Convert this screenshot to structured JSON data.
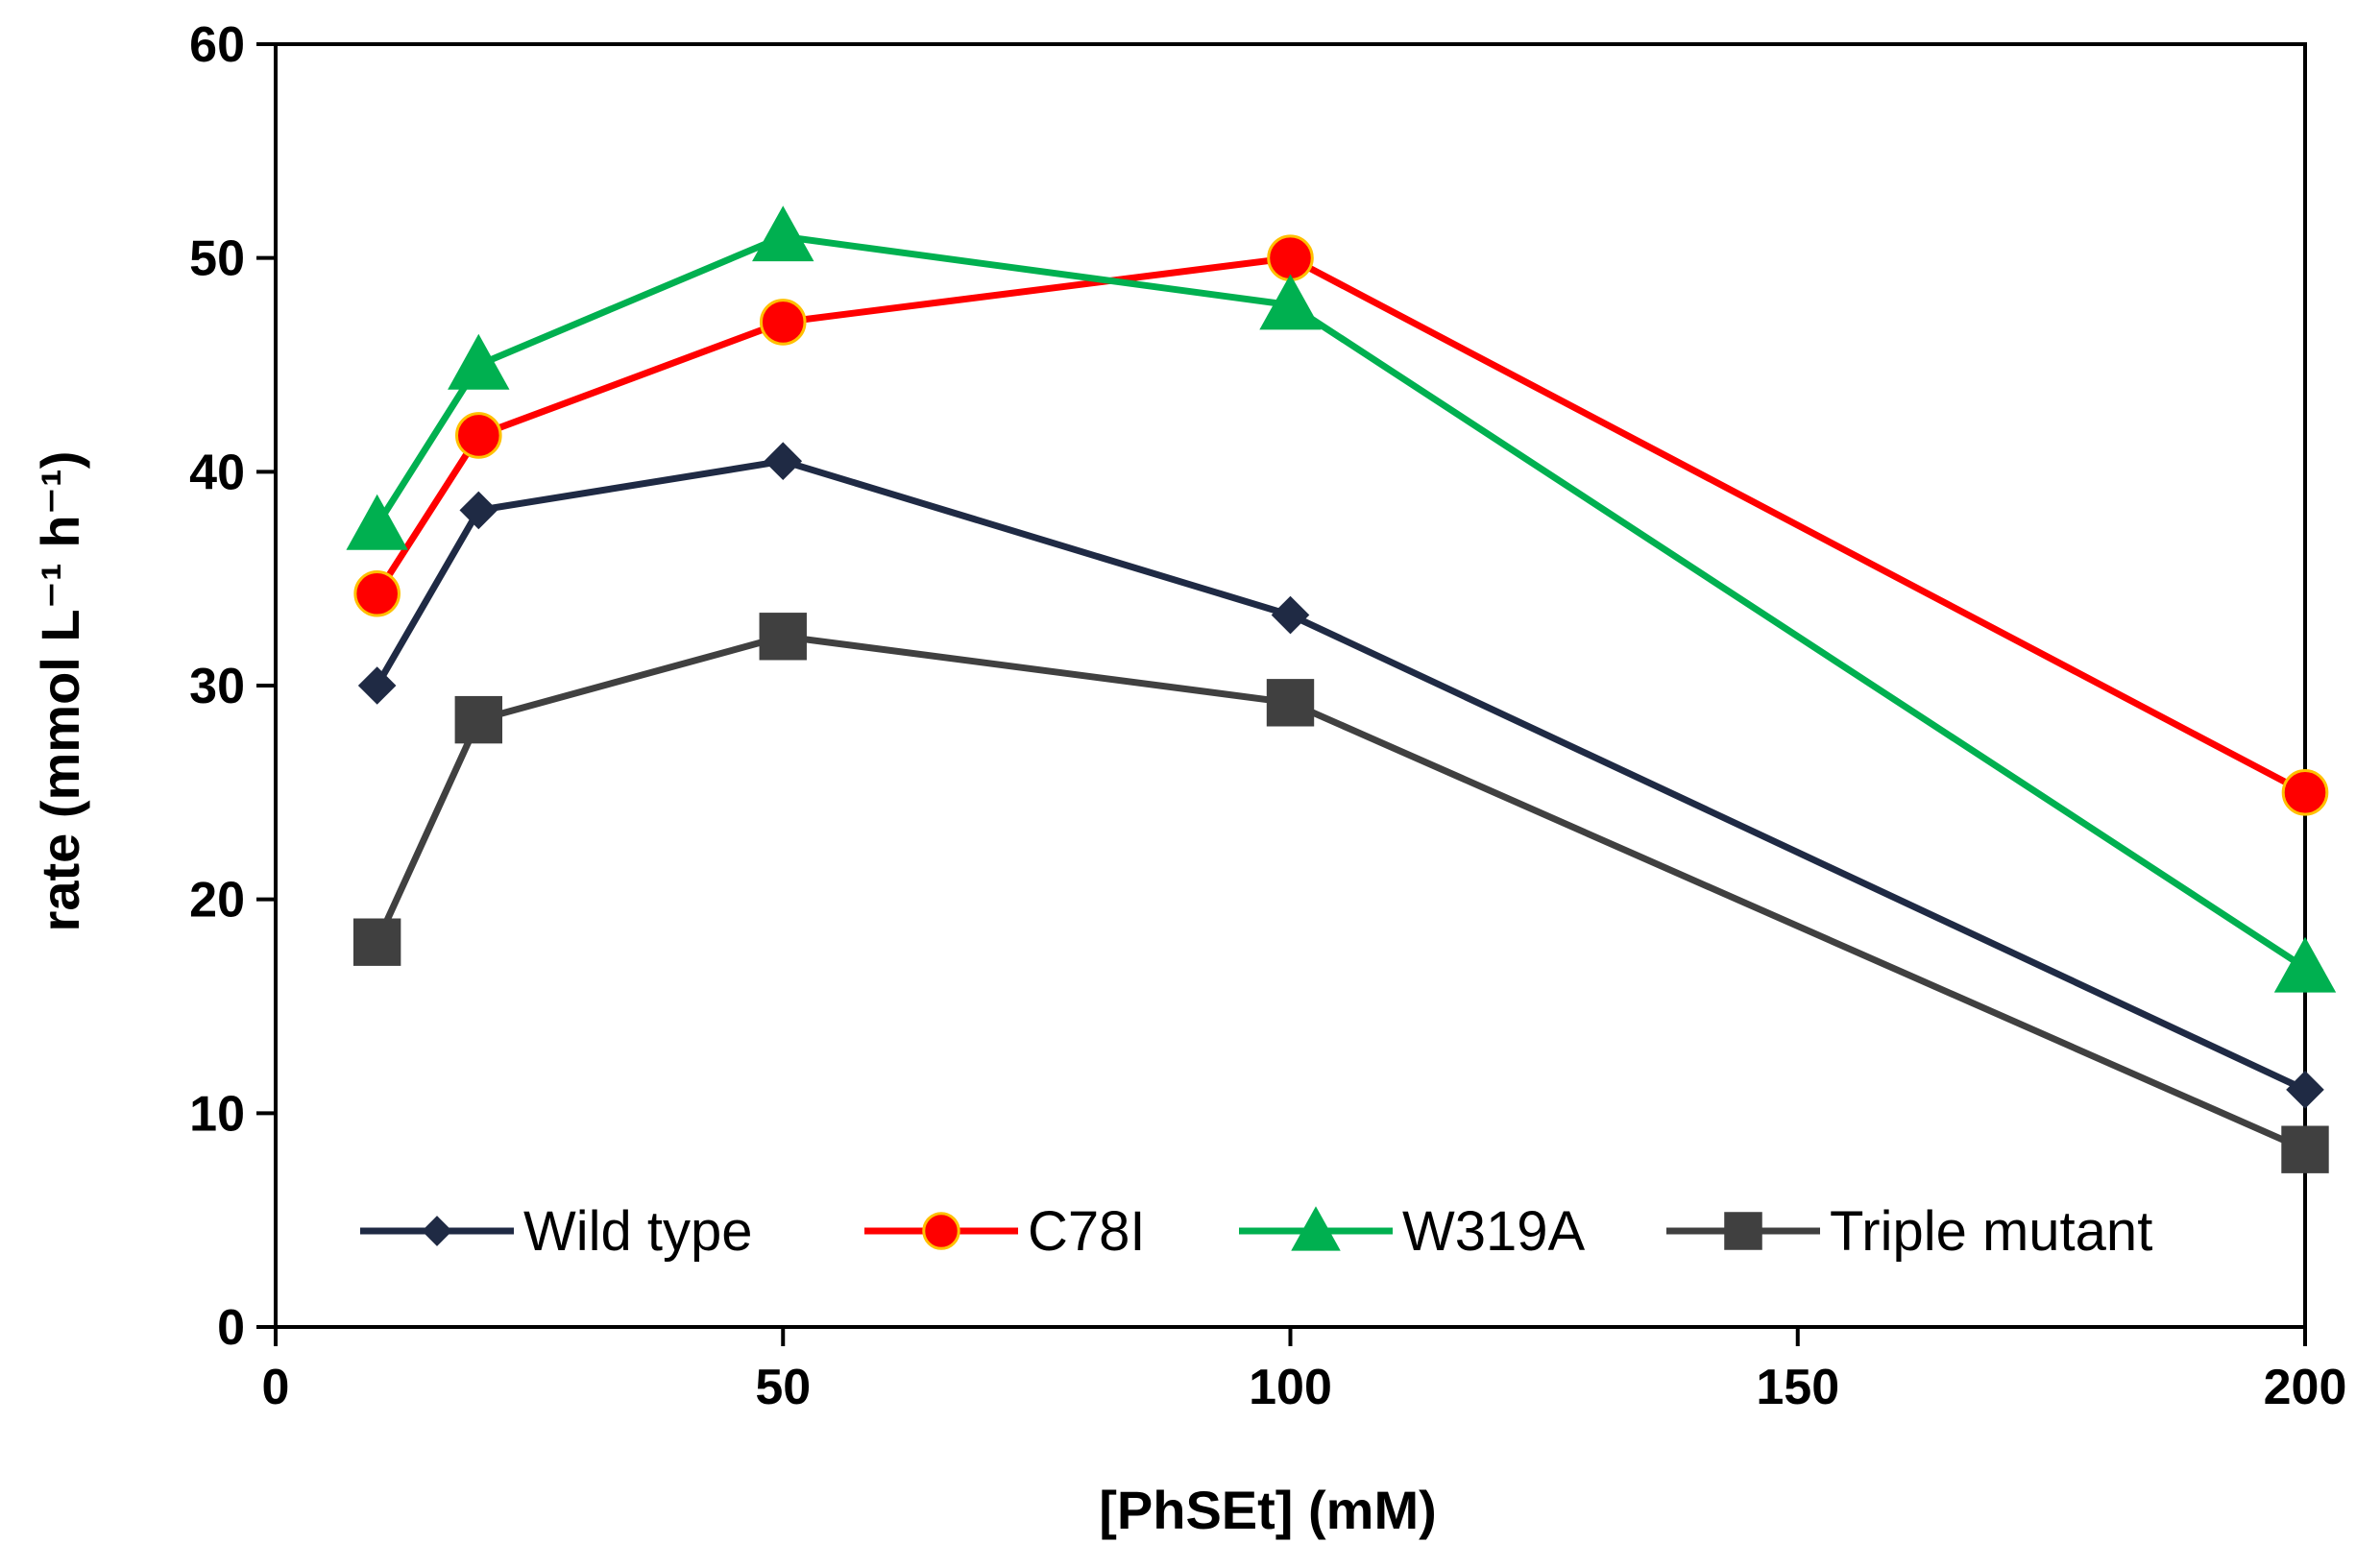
{
  "chart_data": {
    "type": "line",
    "title": "",
    "xlabel": "[PhSEt] (mM)",
    "ylabel": "rate (mmol L⁻¹ h⁻¹)",
    "xlim": [
      0,
      200
    ],
    "ylim": [
      0,
      60
    ],
    "xticks": [
      0,
      50,
      100,
      150,
      200
    ],
    "yticks": [
      0,
      10,
      20,
      30,
      40,
      50,
      60
    ],
    "grid": false,
    "legend_position": "bottom-inside",
    "x": [
      10,
      20,
      50,
      100,
      200
    ],
    "series": [
      {
        "name": "Wild type",
        "color": "#1f2a44",
        "marker": "diamond",
        "values": [
          30.0,
          38.2,
          40.5,
          33.3,
          11.1
        ]
      },
      {
        "name": "C78I",
        "color": "#ff0000",
        "marker": "circle",
        "values": [
          34.3,
          41.7,
          47.0,
          50.0,
          25.0
        ]
      },
      {
        "name": "W319A",
        "color": "#00b050",
        "marker": "triangle",
        "values": [
          37.5,
          45.0,
          51.0,
          47.8,
          16.8
        ]
      },
      {
        "name": "Triple mutant",
        "color": "#404040",
        "marker": "square",
        "values": [
          18.0,
          28.4,
          32.3,
          29.2,
          8.3
        ]
      }
    ]
  }
}
